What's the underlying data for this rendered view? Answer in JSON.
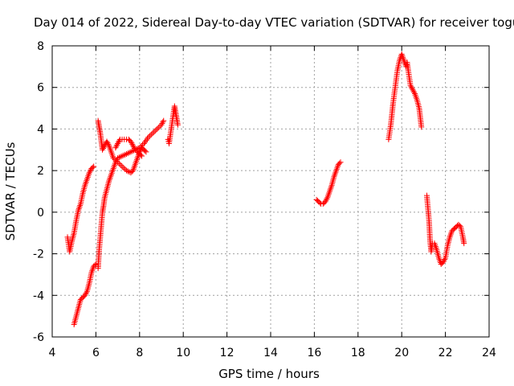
{
  "chart_data": {
    "type": "scatter",
    "title": "Day 014 of 2022, Sidereal Day-to-day VTEC variation (SDTVAR) for receiver togu",
    "xlabel": "GPS time / hours",
    "ylabel": "SDTVAR / TECUs",
    "xlim": [
      4,
      24
    ],
    "ylim": [
      -6,
      8
    ],
    "xticks": [
      "4",
      "6",
      "8",
      "10",
      "12",
      "14",
      "16",
      "18",
      "20",
      "22",
      "24"
    ],
    "yticks": [
      "-6",
      "-4",
      "-2",
      "0",
      "2",
      "4",
      "6",
      "8"
    ],
    "grid": true,
    "marker": "+",
    "color": "#ff0000",
    "series": [
      {
        "name": "SDTVAR",
        "segments": [
          [
            [
              4.7,
              -1.2
            ],
            [
              4.8,
              -1.9
            ],
            [
              4.9,
              -1.4
            ],
            [
              5.0,
              -1.0
            ],
            [
              5.1,
              -0.4
            ],
            [
              5.2,
              0.1
            ],
            [
              5.3,
              0.4
            ],
            [
              5.4,
              0.9
            ],
            [
              5.5,
              1.3
            ],
            [
              5.6,
              1.6
            ],
            [
              5.7,
              1.9
            ],
            [
              5.8,
              2.1
            ],
            [
              5.9,
              2.2
            ]
          ],
          [
            [
              5.0,
              -5.4
            ],
            [
              5.1,
              -5.0
            ],
            [
              5.2,
              -4.6
            ],
            [
              5.3,
              -4.2
            ],
            [
              5.4,
              -4.1
            ],
            [
              5.5,
              -4.0
            ],
            [
              5.6,
              -3.8
            ],
            [
              5.7,
              -3.4
            ],
            [
              5.8,
              -2.9
            ],
            [
              5.9,
              -2.6
            ],
            [
              6.0,
              -2.5
            ]
          ],
          [
            [
              6.1,
              -2.7
            ],
            [
              6.15,
              -1.8
            ],
            [
              6.2,
              -1.2
            ],
            [
              6.25,
              -0.6
            ],
            [
              6.3,
              0.0
            ],
            [
              6.35,
              0.3
            ],
            [
              6.4,
              0.7
            ],
            [
              6.5,
              1.1
            ],
            [
              6.6,
              1.5
            ],
            [
              6.7,
              1.8
            ],
            [
              6.8,
              2.1
            ],
            [
              6.9,
              2.4
            ],
            [
              7.0,
              2.6
            ],
            [
              7.2,
              2.7
            ],
            [
              7.4,
              2.8
            ],
            [
              7.6,
              2.9
            ],
            [
              7.8,
              3.0
            ],
            [
              8.0,
              3.1
            ],
            [
              8.2,
              3.3
            ],
            [
              8.4,
              3.6
            ],
            [
              8.6,
              3.8
            ],
            [
              8.8,
              4.0
            ],
            [
              9.0,
              4.2
            ],
            [
              9.1,
              4.4
            ]
          ],
          [
            [
              6.1,
              4.4
            ],
            [
              6.15,
              4.1
            ],
            [
              6.2,
              3.8
            ],
            [
              6.25,
              3.4
            ],
            [
              6.3,
              3.0
            ],
            [
              6.4,
              3.2
            ],
            [
              6.5,
              3.4
            ],
            [
              6.6,
              3.2
            ],
            [
              6.7,
              2.9
            ],
            [
              6.8,
              2.6
            ],
            [
              7.0,
              2.4
            ],
            [
              7.2,
              2.2
            ],
            [
              7.4,
              2.0
            ],
            [
              7.6,
              1.9
            ],
            [
              7.7,
              2.0
            ],
            [
              7.8,
              2.3
            ],
            [
              7.9,
              2.6
            ],
            [
              8.0,
              2.9
            ],
            [
              8.1,
              3.1
            ],
            [
              8.2,
              3.0
            ],
            [
              8.3,
              2.9
            ]
          ],
          [
            [
              6.9,
              3.1
            ],
            [
              7.0,
              3.3
            ],
            [
              7.1,
              3.5
            ],
            [
              7.3,
              3.5
            ],
            [
              7.5,
              3.5
            ],
            [
              7.6,
              3.4
            ],
            [
              7.7,
              3.2
            ],
            [
              7.8,
              3.0
            ],
            [
              8.0,
              2.8
            ],
            [
              8.1,
              2.7
            ]
          ],
          [
            [
              9.3,
              3.5
            ],
            [
              9.35,
              3.3
            ],
            [
              9.6,
              5.1
            ],
            [
              9.65,
              4.8
            ],
            [
              9.7,
              4.5
            ],
            [
              9.75,
              4.2
            ]
          ],
          [
            [
              16.1,
              0.6
            ],
            [
              16.2,
              0.5
            ],
            [
              16.3,
              0.4
            ],
            [
              16.4,
              0.4
            ],
            [
              16.5,
              0.5
            ],
            [
              16.6,
              0.7
            ],
            [
              16.7,
              1.0
            ],
            [
              16.8,
              1.3
            ],
            [
              16.9,
              1.7
            ],
            [
              17.0,
              2.0
            ],
            [
              17.1,
              2.3
            ],
            [
              17.2,
              2.4
            ]
          ],
          [
            [
              19.4,
              3.5
            ],
            [
              19.5,
              4.2
            ],
            [
              19.6,
              5.2
            ],
            [
              19.7,
              6.0
            ],
            [
              19.8,
              6.8
            ],
            [
              19.9,
              7.3
            ],
            [
              20.0,
              7.6
            ],
            [
              20.1,
              7.3
            ],
            [
              20.2,
              7.0
            ],
            [
              20.25,
              7.2
            ],
            [
              20.3,
              6.8
            ],
            [
              20.4,
              6.1
            ],
            [
              20.5,
              5.9
            ],
            [
              20.6,
              5.7
            ],
            [
              20.7,
              5.4
            ],
            [
              20.8,
              5.0
            ],
            [
              20.9,
              4.1
            ]
          ],
          [
            [
              21.15,
              0.8
            ],
            [
              21.2,
              0.2
            ],
            [
              21.25,
              -0.4
            ],
            [
              21.3,
              -1.4
            ],
            [
              21.35,
              -1.9
            ],
            [
              21.4,
              -1.5
            ],
            [
              21.5,
              -1.5
            ],
            [
              21.6,
              -1.8
            ],
            [
              21.7,
              -2.2
            ],
            [
              21.8,
              -2.5
            ],
            [
              21.9,
              -2.4
            ],
            [
              22.0,
              -2.2
            ],
            [
              22.1,
              -1.6
            ],
            [
              22.2,
              -1.2
            ],
            [
              22.3,
              -0.9
            ],
            [
              22.4,
              -0.8
            ],
            [
              22.5,
              -0.7
            ],
            [
              22.6,
              -0.6
            ],
            [
              22.7,
              -0.7
            ],
            [
              22.8,
              -1.2
            ],
            [
              22.85,
              -1.5
            ]
          ]
        ]
      }
    ]
  }
}
